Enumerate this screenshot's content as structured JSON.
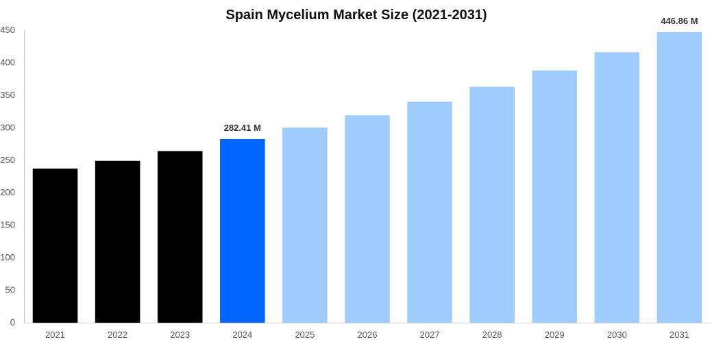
{
  "chart_data": {
    "type": "bar",
    "title": "Spain Mycelium Market Size (2021-2031)",
    "xlabel": "",
    "ylabel": "",
    "categories": [
      "2021",
      "2022",
      "2023",
      "2024",
      "2025",
      "2026",
      "2027",
      "2028",
      "2029",
      "2030",
      "2031"
    ],
    "values": [
      237,
      249,
      264,
      282.41,
      300,
      319,
      340,
      363,
      388,
      416,
      446.86
    ],
    "ylim": [
      0,
      450
    ],
    "yticks": [
      0,
      50,
      100,
      150,
      200,
      250,
      300,
      350,
      400,
      450
    ],
    "bar_colors": [
      "#000000",
      "#000000",
      "#000000",
      "#0066ff",
      "#a0cdff",
      "#a0cdff",
      "#a0cdff",
      "#a0cdff",
      "#a0cdff",
      "#a0cdff",
      "#a0cdff"
    ],
    "data_labels": [
      {
        "category": "2024",
        "text": "282.41 M"
      },
      {
        "category": "2031",
        "text": "446.86 M"
      }
    ],
    "grid": false,
    "legend": "none",
    "colors": {
      "axis": "#cccccc",
      "tick_text": "#555555",
      "title_text": "#111111",
      "label_text": "#333333"
    }
  }
}
